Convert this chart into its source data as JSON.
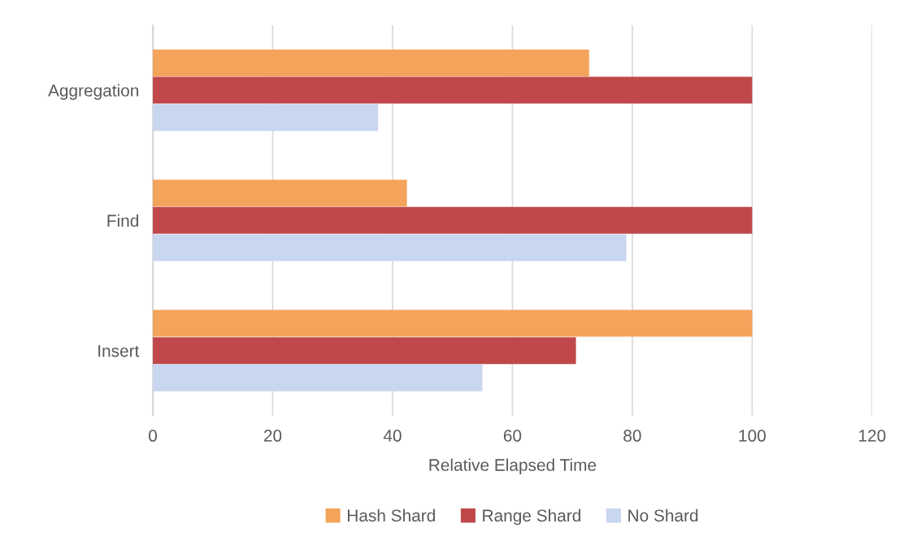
{
  "chart_data": {
    "type": "bar",
    "orientation": "horizontal",
    "xlabel": "Relative Elapsed Time",
    "categories": [
      "Aggregation",
      "Find",
      "Insert"
    ],
    "series": [
      {
        "name": "Hash Shard",
        "color": "#f4a45a",
        "values": [
          72.8,
          42.4,
          100
        ]
      },
      {
        "name": "Range Shard",
        "color": "#c0484a",
        "values": [
          100,
          100,
          70.6
        ]
      },
      {
        "name": "No Shard",
        "color": "#c9d6ef",
        "values": [
          37.6,
          79.0,
          55.0
        ]
      }
    ],
    "xlim": [
      0,
      120
    ],
    "xticks": [
      0,
      20,
      40,
      60,
      80,
      100,
      120
    ],
    "grid": "x",
    "legend": "bottom"
  }
}
